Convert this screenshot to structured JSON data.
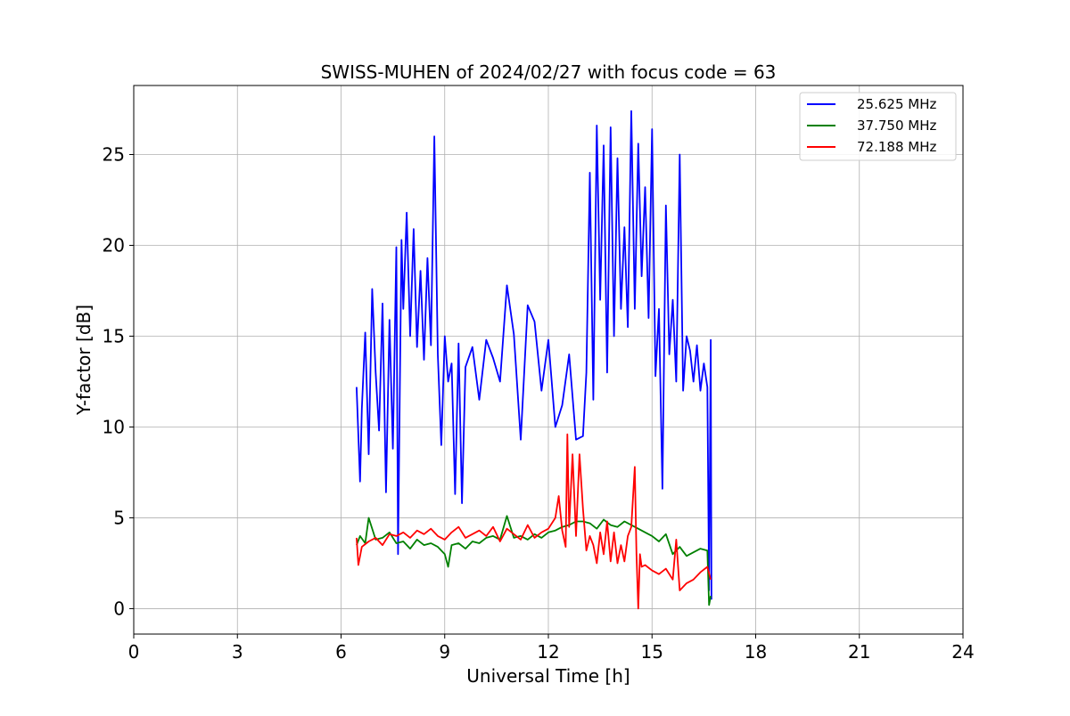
{
  "chart_data": {
    "type": "line",
    "title": "SWISS-MUHEN of 2024/02/27 with focus code = 63",
    "xlabel": "Universal Time [h]",
    "ylabel": "Y-factor [dB]",
    "xlim": [
      0,
      24
    ],
    "ylim": [
      -1.4,
      28.8
    ],
    "xticks": [
      0,
      3,
      6,
      9,
      12,
      15,
      18,
      21,
      24
    ],
    "yticks": [
      0,
      5,
      10,
      15,
      20,
      25
    ],
    "grid": true,
    "legend_position": "top-right",
    "series": [
      {
        "name": "25.625 MHz",
        "color": "#0000ff",
        "x": [
          6.45,
          6.55,
          6.6,
          6.7,
          6.8,
          6.9,
          7.0,
          7.1,
          7.2,
          7.3,
          7.4,
          7.5,
          7.6,
          7.65,
          7.7,
          7.75,
          7.8,
          7.9,
          8.0,
          8.1,
          8.2,
          8.3,
          8.4,
          8.5,
          8.6,
          8.7,
          8.8,
          8.9,
          9.0,
          9.1,
          9.2,
          9.3,
          9.4,
          9.5,
          9.6,
          9.8,
          10.0,
          10.2,
          10.4,
          10.6,
          10.8,
          11.0,
          11.2,
          11.4,
          11.6,
          11.8,
          12.0,
          12.2,
          12.4,
          12.6,
          12.8,
          13.0,
          13.1,
          13.2,
          13.3,
          13.4,
          13.5,
          13.6,
          13.7,
          13.8,
          13.9,
          14.0,
          14.1,
          14.2,
          14.3,
          14.4,
          14.5,
          14.6,
          14.7,
          14.8,
          14.9,
          15.0,
          15.1,
          15.2,
          15.3,
          15.4,
          15.5,
          15.6,
          15.7,
          15.8,
          15.9,
          16.0,
          16.1,
          16.2,
          16.3,
          16.4,
          16.5,
          16.6,
          16.65,
          16.7,
          16.72
        ],
        "y": [
          12.2,
          7.0,
          11.0,
          15.2,
          8.5,
          17.6,
          13.0,
          9.8,
          16.8,
          6.4,
          15.9,
          8.8,
          19.9,
          3.0,
          12.0,
          20.3,
          16.5,
          21.8,
          15.0,
          20.9,
          14.4,
          18.6,
          13.7,
          19.3,
          14.5,
          26.0,
          14.0,
          9.0,
          15.0,
          12.5,
          13.5,
          6.3,
          14.6,
          5.8,
          13.3,
          14.4,
          11.5,
          14.8,
          13.8,
          12.5,
          17.8,
          15.1,
          9.3,
          16.7,
          15.8,
          12.0,
          14.8,
          10.0,
          11.2,
          14.0,
          9.3,
          9.5,
          13.0,
          24.0,
          11.5,
          26.6,
          17.0,
          25.5,
          13.0,
          26.5,
          15.0,
          24.8,
          16.5,
          21.0,
          15.5,
          27.4,
          16.5,
          25.6,
          18.3,
          23.2,
          16.0,
          26.4,
          12.8,
          16.5,
          6.6,
          22.2,
          14.0,
          17.0,
          12.5,
          25.0,
          12.0,
          15.0,
          14.2,
          12.5,
          14.5,
          12.0,
          13.5,
          12.2,
          1.0,
          14.8,
          0.5
        ]
      },
      {
        "name": "37.750 MHz",
        "color": "#008000",
        "x": [
          6.45,
          6.55,
          6.7,
          6.8,
          7.0,
          7.2,
          7.4,
          7.6,
          7.8,
          8.0,
          8.2,
          8.4,
          8.6,
          8.8,
          9.0,
          9.1,
          9.2,
          9.4,
          9.6,
          9.8,
          10.0,
          10.2,
          10.4,
          10.6,
          10.8,
          11.0,
          11.2,
          11.4,
          11.6,
          11.8,
          12.0,
          12.2,
          12.4,
          12.6,
          12.8,
          13.0,
          13.2,
          13.4,
          13.6,
          13.8,
          14.0,
          14.2,
          14.4,
          14.6,
          14.8,
          15.0,
          15.2,
          15.4,
          15.6,
          15.8,
          16.0,
          16.2,
          16.4,
          16.6,
          16.65,
          16.7
        ],
        "y": [
          3.5,
          4.0,
          3.6,
          5.0,
          3.8,
          3.9,
          4.2,
          3.6,
          3.7,
          3.3,
          3.8,
          3.5,
          3.6,
          3.4,
          3.0,
          2.3,
          3.5,
          3.6,
          3.3,
          3.7,
          3.6,
          3.9,
          4.0,
          3.8,
          5.1,
          3.9,
          4.0,
          3.8,
          4.1,
          3.9,
          4.2,
          4.3,
          4.5,
          4.6,
          4.8,
          4.8,
          4.7,
          4.4,
          4.9,
          4.6,
          4.5,
          4.8,
          4.6,
          4.4,
          4.2,
          4.0,
          3.7,
          4.1,
          3.0,
          3.4,
          2.9,
          3.1,
          3.3,
          3.2,
          0.2,
          0.7
        ]
      },
      {
        "name": "72.188 MHz",
        "color": "#ff0000",
        "x": [
          6.45,
          6.5,
          6.6,
          6.8,
          7.0,
          7.2,
          7.4,
          7.6,
          7.8,
          8.0,
          8.2,
          8.4,
          8.6,
          8.8,
          9.0,
          9.2,
          9.4,
          9.6,
          9.8,
          10.0,
          10.2,
          10.4,
          10.6,
          10.8,
          11.0,
          11.2,
          11.4,
          11.6,
          11.8,
          12.0,
          12.2,
          12.3,
          12.4,
          12.5,
          12.55,
          12.6,
          12.7,
          12.8,
          12.9,
          13.0,
          13.1,
          13.2,
          13.3,
          13.4,
          13.5,
          13.6,
          13.7,
          13.8,
          13.9,
          14.0,
          14.1,
          14.2,
          14.3,
          14.4,
          14.5,
          14.55,
          14.6,
          14.65,
          14.7,
          14.8,
          15.0,
          15.2,
          15.4,
          15.6,
          15.7,
          15.8,
          16.0,
          16.2,
          16.4,
          16.6,
          16.7
        ],
        "y": [
          3.9,
          2.4,
          3.4,
          3.7,
          3.9,
          3.5,
          4.1,
          4.0,
          4.2,
          3.9,
          4.3,
          4.1,
          4.4,
          4.0,
          3.8,
          4.2,
          4.5,
          3.9,
          4.1,
          4.3,
          4.0,
          4.5,
          3.7,
          4.4,
          4.1,
          3.8,
          4.6,
          3.9,
          4.2,
          4.4,
          5.0,
          6.2,
          4.3,
          3.4,
          9.6,
          4.5,
          8.5,
          4.0,
          8.5,
          5.5,
          3.2,
          4.0,
          3.5,
          2.5,
          4.2,
          3.0,
          4.8,
          2.6,
          4.2,
          2.5,
          3.5,
          2.6,
          4.0,
          4.5,
          7.8,
          3.0,
          0.0,
          3.0,
          2.3,
          2.4,
          2.1,
          1.9,
          2.2,
          1.6,
          3.8,
          1.0,
          1.4,
          1.6,
          2.0,
          2.3,
          1.6
        ]
      }
    ]
  }
}
